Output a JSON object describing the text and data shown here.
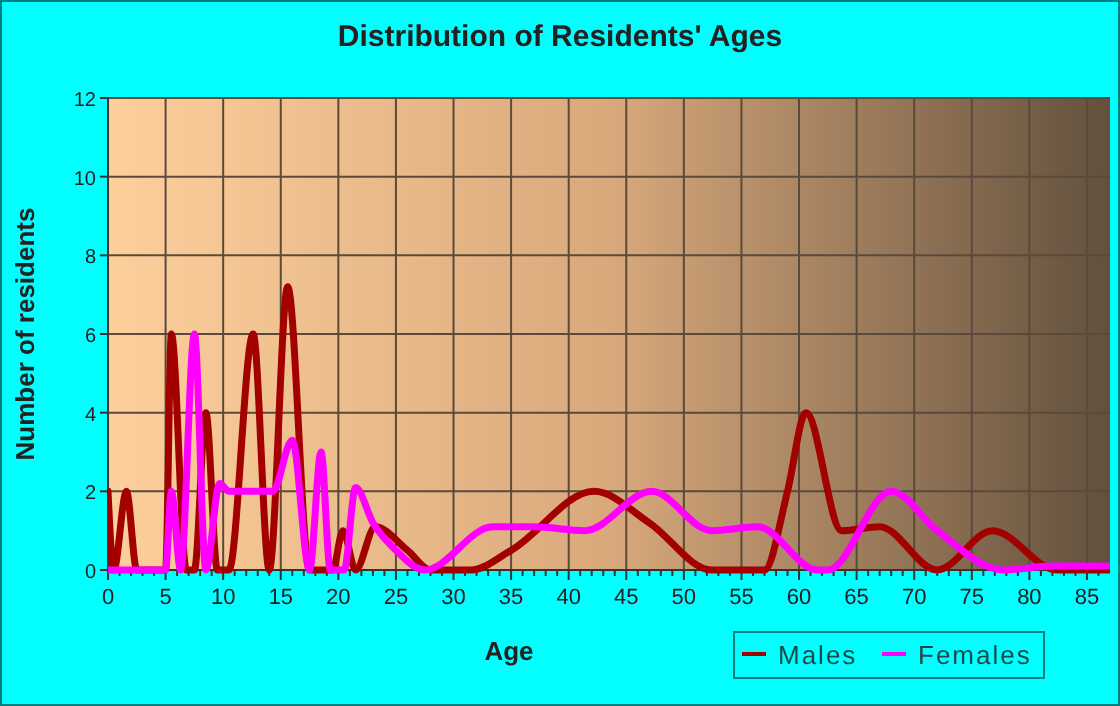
{
  "chart_data": {
    "type": "line",
    "title": "Distribution of Residents' Ages",
    "xlabel": "Age",
    "ylabel": "Number of residents",
    "xlim": [
      0,
      87
    ],
    "ylim": [
      0,
      12
    ],
    "xticks": [
      0,
      {
        "value": 1,
        "label": null
      },
      {
        "value": 2,
        "label": null
      },
      {
        "value": 3,
        "label": null
      },
      {
        "value": 4,
        "label": null
      },
      5,
      {
        "value": 6,
        "label": null
      },
      {
        "value": 7,
        "label": null
      },
      {
        "value": 8,
        "label": null
      },
      {
        "value": 9,
        "label": null
      },
      10,
      {
        "value": 11,
        "label": null
      },
      {
        "value": 12,
        "label": null
      },
      {
        "value": 13,
        "label": null
      },
      {
        "value": 14,
        "label": null
      },
      15,
      {
        "value": 16,
        "label": null
      },
      {
        "value": 17,
        "label": null
      },
      {
        "value": 18,
        "label": null
      },
      {
        "value": 19,
        "label": null
      },
      20,
      {
        "value": 21,
        "label": null
      },
      {
        "value": 22,
        "label": null
      },
      {
        "value": 23,
        "label": null
      },
      {
        "value": 24,
        "label": null
      },
      25,
      {
        "value": 26,
        "label": null
      },
      {
        "value": 27,
        "label": null
      },
      {
        "value": 28,
        "label": null
      },
      {
        "value": 29,
        "label": null
      },
      30,
      {
        "value": 31,
        "label": null
      },
      {
        "value": 32,
        "label": null
      },
      {
        "value": 33,
        "label": null
      },
      {
        "value": 34,
        "label": null
      },
      35,
      {
        "value": 36,
        "label": null
      },
      {
        "value": 37,
        "label": null
      },
      {
        "value": 38,
        "label": null
      },
      {
        "value": 39,
        "label": null
      },
      40,
      {
        "value": 41,
        "label": null
      },
      {
        "value": 42,
        "label": null
      },
      {
        "value": 43,
        "label": null
      },
      {
        "value": 44,
        "label": null
      },
      45,
      {
        "value": 46,
        "label": null
      },
      {
        "value": 47,
        "label": null
      },
      {
        "value": 48,
        "label": null
      },
      {
        "value": 49,
        "label": null
      },
      50,
      {
        "value": 51,
        "label": null
      },
      {
        "value": 52,
        "label": null
      },
      {
        "value": 53,
        "label": null
      },
      {
        "value": 54,
        "label": null
      },
      55,
      {
        "value": 56,
        "label": null
      },
      {
        "value": 57,
        "label": null
      },
      {
        "value": 58,
        "label": null
      },
      {
        "value": 59,
        "label": null
      },
      60,
      {
        "value": 61,
        "label": null
      },
      {
        "value": 62,
        "label": null
      },
      {
        "value": 63,
        "label": null
      },
      {
        "value": 64,
        "label": null
      },
      65,
      {
        "value": 66,
        "label": null
      },
      {
        "value": 67,
        "label": null
      },
      {
        "value": 68,
        "label": null
      },
      {
        "value": 69,
        "label": null
      },
      70,
      {
        "value": 71,
        "label": null
      },
      {
        "value": 72,
        "label": null
      },
      {
        "value": 73,
        "label": null
      },
      {
        "value": 74,
        "label": null
      },
      75,
      {
        "value": 76,
        "label": null
      },
      {
        "value": 77,
        "label": null
      },
      {
        "value": 78,
        "label": null
      },
      {
        "value": 79,
        "label": null
      },
      80,
      {
        "value": 81,
        "label": null
      },
      {
        "value": 82,
        "label": null
      },
      {
        "value": 83,
        "label": null
      },
      {
        "value": 84,
        "label": null
      },
      85,
      {
        "value": 86,
        "label": null
      }
    ],
    "yticks": [
      0,
      2,
      4,
      6,
      8,
      10,
      12
    ],
    "grid": true,
    "legend": "bottom right",
    "marker": "none",
    "series": [
      {
        "name": "Males",
        "color": "#a30000",
        "x": [
          0,
          0.5,
          1.6,
          2.5,
          5,
          5.5,
          6.8,
          7.5,
          8.5,
          9.5,
          10.5,
          12.6,
          14,
          15.6,
          17.5,
          19.5,
          20.4,
          21.5,
          23.2,
          26,
          28,
          31.5,
          35,
          42.2,
          47,
          52.4,
          57,
          59,
          60.6,
          63.7,
          67,
          72,
          76.8,
          82.4,
          87
        ],
        "values": [
          2,
          0,
          2,
          0,
          0,
          6,
          0,
          0,
          4,
          0,
          0,
          6,
          0,
          7.2,
          0,
          0,
          1,
          0,
          1.1,
          0.5,
          0,
          0,
          0.5,
          2,
          1.2,
          0,
          0,
          2,
          4,
          1,
          1.1,
          0,
          1,
          0,
          0
        ]
      },
      {
        "name": "Females",
        "color": "#ff00ff",
        "x": [
          0,
          5,
          5.5,
          6.3,
          7.5,
          8.5,
          9.7,
          10.5,
          14.3,
          16,
          17.5,
          18.5,
          19.3,
          20.5,
          21.5,
          23,
          25,
          27.5,
          33.4,
          37,
          41.4,
          47.2,
          52.4,
          56.4,
          61.6,
          62.5,
          68,
          72,
          77.7,
          82,
          87
        ],
        "values": [
          0,
          0,
          2,
          0,
          6,
          0,
          2.2,
          2,
          2,
          3.3,
          0,
          3,
          0,
          0,
          2.1,
          1.2,
          0.5,
          0,
          1.1,
          1.1,
          1,
          2,
          1,
          1.1,
          0,
          0,
          2,
          1,
          0,
          0.1,
          0.1
        ]
      }
    ]
  }
}
